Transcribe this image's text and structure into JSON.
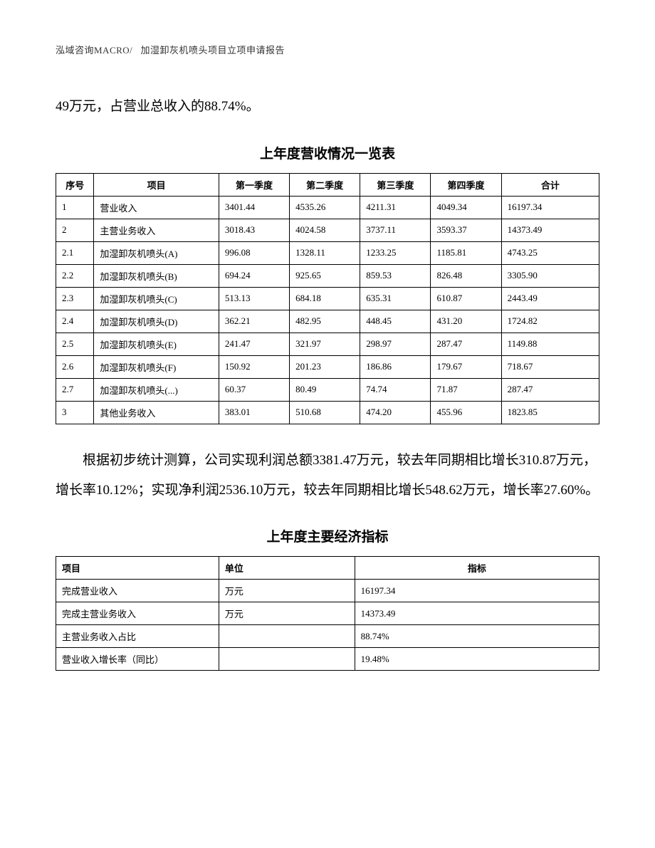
{
  "header": {
    "company": "泓域咨询MACRO/",
    "doc_title": "加湿卸灰机喷头项目立项申请报告"
  },
  "paragraph1": "49万元，占营业总收入的88.74%。",
  "table1": {
    "title": "上年度营收情况一览表",
    "columns": [
      "序号",
      "项目",
      "第一季度",
      "第二季度",
      "第三季度",
      "第四季度",
      "合计"
    ],
    "rows": [
      [
        "1",
        "营业收入",
        "3401.44",
        "4535.26",
        "4211.31",
        "4049.34",
        "16197.34"
      ],
      [
        "2",
        "主营业务收入",
        "3018.43",
        "4024.58",
        "3737.11",
        "3593.37",
        "14373.49"
      ],
      [
        "2.1",
        "加湿卸灰机喷头(A)",
        "996.08",
        "1328.11",
        "1233.25",
        "1185.81",
        "4743.25"
      ],
      [
        "2.2",
        "加湿卸灰机喷头(B)",
        "694.24",
        "925.65",
        "859.53",
        "826.48",
        "3305.90"
      ],
      [
        "2.3",
        "加湿卸灰机喷头(C)",
        "513.13",
        "684.18",
        "635.31",
        "610.87",
        "2443.49"
      ],
      [
        "2.4",
        "加湿卸灰机喷头(D)",
        "362.21",
        "482.95",
        "448.45",
        "431.20",
        "1724.82"
      ],
      [
        "2.5",
        "加湿卸灰机喷头(E)",
        "241.47",
        "321.97",
        "298.97",
        "287.47",
        "1149.88"
      ],
      [
        "2.6",
        "加湿卸灰机喷头(F)",
        "150.92",
        "201.23",
        "186.86",
        "179.67",
        "718.67"
      ],
      [
        "2.7",
        "加湿卸灰机喷头(...)",
        "60.37",
        "80.49",
        "74.74",
        "71.87",
        "287.47"
      ],
      [
        "3",
        "其他业务收入",
        "383.01",
        "510.68",
        "474.20",
        "455.96",
        "1823.85"
      ]
    ]
  },
  "paragraph2": "根据初步统计测算，公司实现利润总额3381.47万元，较去年同期相比增长310.87万元，增长率10.12%；实现净利润2536.10万元，较去年同期相比增长548.62万元，增长率27.60%。",
  "table2": {
    "title": "上年度主要经济指标",
    "columns": [
      "项目",
      "单位",
      "指标"
    ],
    "rows": [
      [
        "完成营业收入",
        "万元",
        "16197.34"
      ],
      [
        "完成主营业务收入",
        "万元",
        "14373.49"
      ],
      [
        "主营业务收入占比",
        "",
        "88.74%"
      ],
      [
        "营业收入增长率（同比）",
        "",
        "19.48%"
      ]
    ]
  }
}
